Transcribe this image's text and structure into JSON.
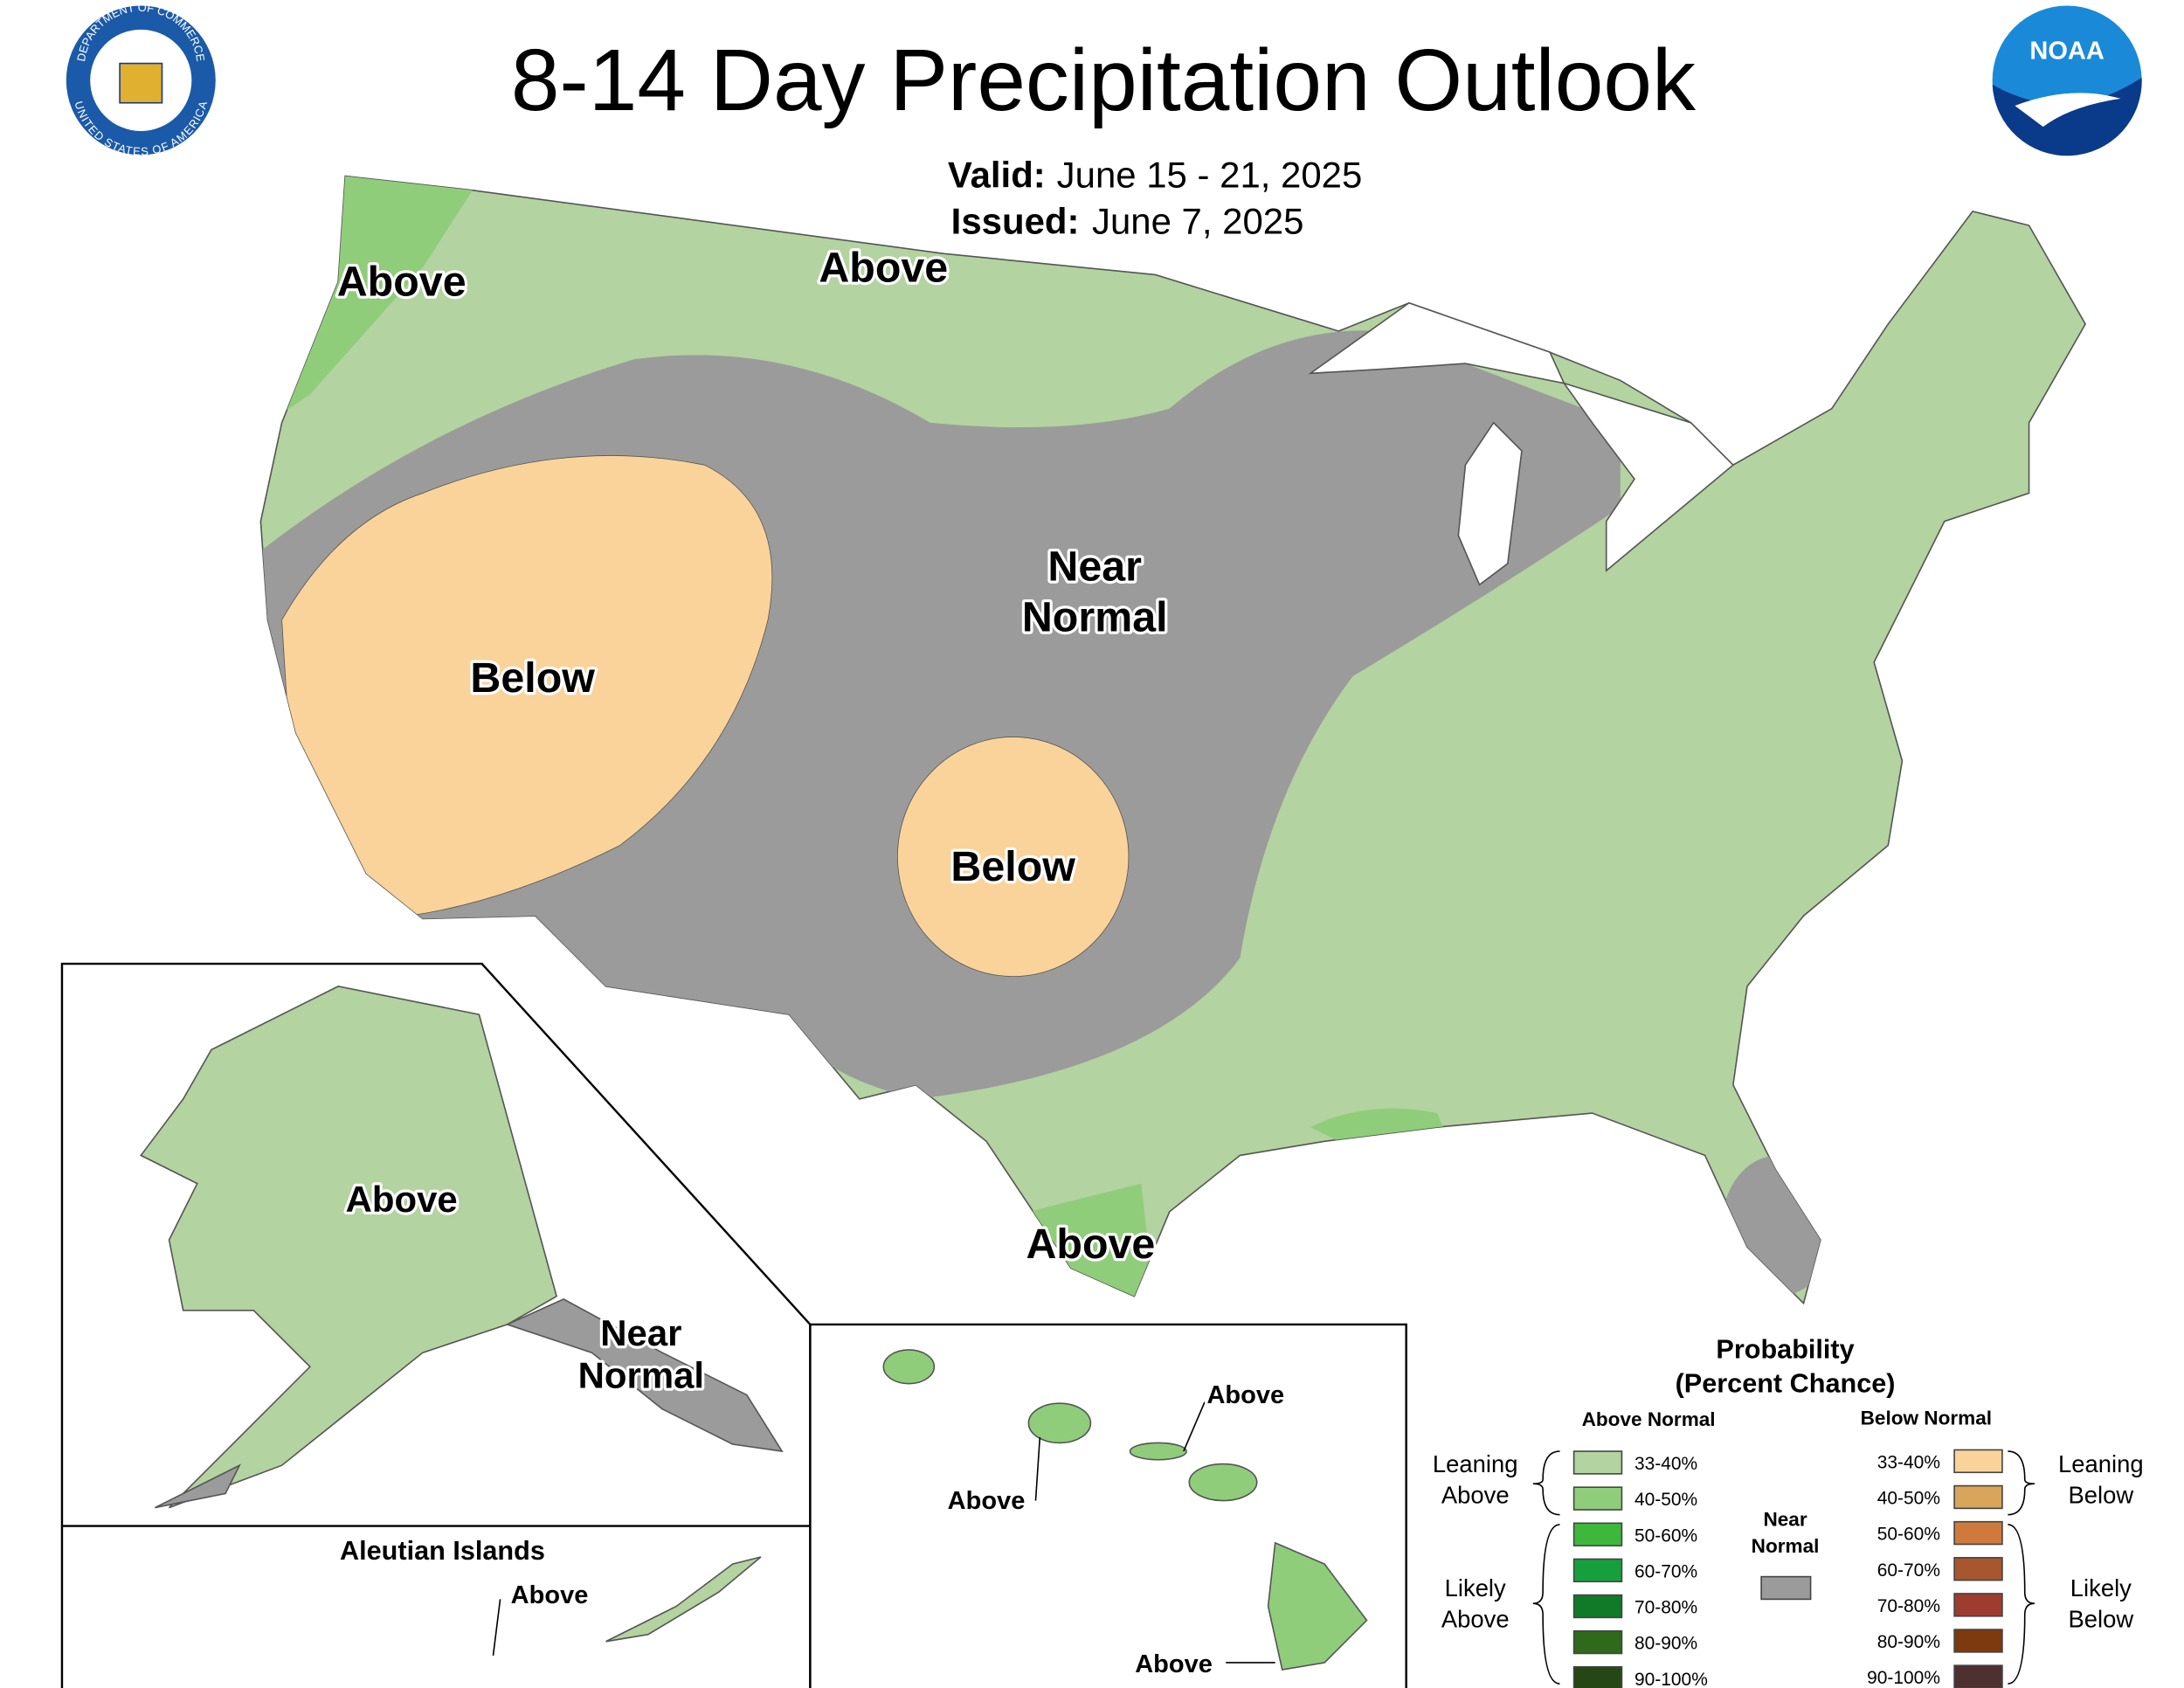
{
  "header": {
    "title": "8-14 Day Precipitation Outlook",
    "valid_label": "Valid:",
    "valid_value": "June 15 - 21, 2025",
    "issued_label": "Issued:",
    "issued_value": "June 7, 2025",
    "seal_top": "DEPARTMENT OF COMMERCE",
    "seal_bottom": "UNITED STATES OF AMERICA",
    "noaa": "NOAA"
  },
  "map_labels": {
    "conus": [
      [
        "Above"
      ],
      [
        "Above"
      ],
      [
        "Near",
        "Normal"
      ],
      [
        "Below"
      ],
      [
        "Below"
      ],
      [
        "Above"
      ]
    ],
    "alaska": [
      [
        "Above"
      ],
      [
        "Near",
        "Normal"
      ]
    ],
    "aleutian_title": "Aleutian Islands",
    "aleutian": [
      [
        "Above"
      ]
    ],
    "hawaii": [
      [
        "Above"
      ],
      [
        "Above"
      ],
      [
        "Above"
      ]
    ]
  },
  "legend": {
    "title": [
      "Probability",
      "(Percent Chance)"
    ],
    "above_header": "Above Normal",
    "below_header": "Below Normal",
    "near": {
      "label": [
        "Near",
        "Normal"
      ],
      "color": "#9b9b9b"
    },
    "groups": {
      "leaning_above": [
        "Leaning",
        "Above"
      ],
      "likely_above": [
        "Likely",
        "Above"
      ],
      "leaning_below": [
        "Leaning",
        "Below"
      ],
      "likely_below": [
        "Likely",
        "Below"
      ]
    },
    "above_items": [
      {
        "label": "33-40%",
        "color": "#b3d3a0"
      },
      {
        "label": "40-50%",
        "color": "#8fcd7b"
      },
      {
        "label": "50-60%",
        "color": "#3db83a"
      },
      {
        "label": "60-70%",
        "color": "#16a03c"
      },
      {
        "label": "70-80%",
        "color": "#0f7a28"
      },
      {
        "label": "80-90%",
        "color": "#2e6a1a"
      },
      {
        "label": "90-100%",
        "color": "#254714"
      }
    ],
    "below_items": [
      {
        "label": "33-40%",
        "color": "#f9d39a"
      },
      {
        "label": "40-50%",
        "color": "#d8a55a"
      },
      {
        "label": "50-60%",
        "color": "#cf7a3c"
      },
      {
        "label": "60-70%",
        "color": "#a8562e"
      },
      {
        "label": "70-80%",
        "color": "#9e3c30"
      },
      {
        "label": "80-90%",
        "color": "#7c3a0e"
      },
      {
        "label": "90-100%",
        "color": "#4e3030"
      }
    ]
  }
}
